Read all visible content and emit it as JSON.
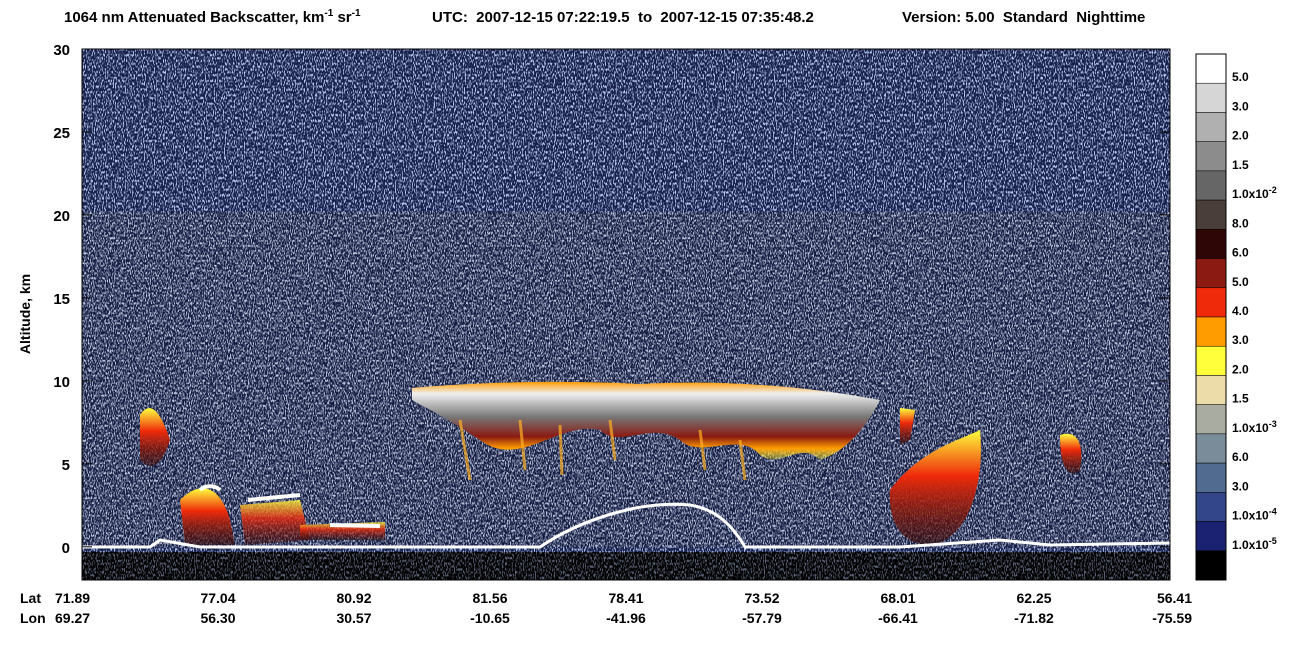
{
  "chart_data": {
    "type": "lidar-curtain",
    "title": {
      "main": "1064 nm Attenuated Backscatter, km",
      "sup1": "-1",
      "unit2": " sr",
      "sup2": "-1",
      "time": "UTC:  2007-12-15 07:22:19.5  to  2007-12-15 07:35:48.2",
      "version": "Version: 5.00  Standard  Nighttime"
    },
    "ylabel": "Altitude, km",
    "ylim": [
      -2,
      30
    ],
    "yticks": [
      0,
      5,
      10,
      15,
      20,
      25,
      30
    ],
    "x_row_labels": [
      "Lat",
      "Lon"
    ],
    "lat": [
      "71.89",
      "77.04",
      "80.92",
      "81.56",
      "78.41",
      "73.52",
      "68.01",
      "62.25",
      "56.41"
    ],
    "lon": [
      "69.27",
      "56.30",
      "30.57",
      "-10.65",
      "-41.96",
      "-57.79",
      "-66.41",
      "-71.82",
      "-75.59"
    ],
    "colorbar": {
      "colors": [
        "#ffffff",
        "#d6d6d6",
        "#b0b0b0",
        "#8c8c8c",
        "#666666",
        "#4a3e3a",
        "#2e0606",
        "#8a1a12",
        "#ef2a0a",
        "#ff9c00",
        "#ffff3c",
        "#ecdcaa",
        "#a9aca0",
        "#7a8c99",
        "#506a90",
        "#34468a",
        "#1c2272",
        "#000000"
      ],
      "labels": [
        {
          "text": "5.0"
        },
        {
          "text": "3.0"
        },
        {
          "text": "2.0"
        },
        {
          "text": "1.5"
        },
        {
          "text": "1.0x10",
          "exp": "-2"
        },
        {
          "text": "8.0"
        },
        {
          "text": "6.0"
        },
        {
          "text": "5.0"
        },
        {
          "text": "4.0"
        },
        {
          "text": "3.0"
        },
        {
          "text": "2.0"
        },
        {
          "text": "1.5"
        },
        {
          "text": "1.0x10",
          "exp": "-3"
        },
        {
          "text": "6.0"
        },
        {
          "text": "3.0"
        },
        {
          "text": "1.0x10",
          "exp": "-4"
        },
        {
          "text": "1.0x10",
          "exp": "-5"
        }
      ]
    }
  }
}
